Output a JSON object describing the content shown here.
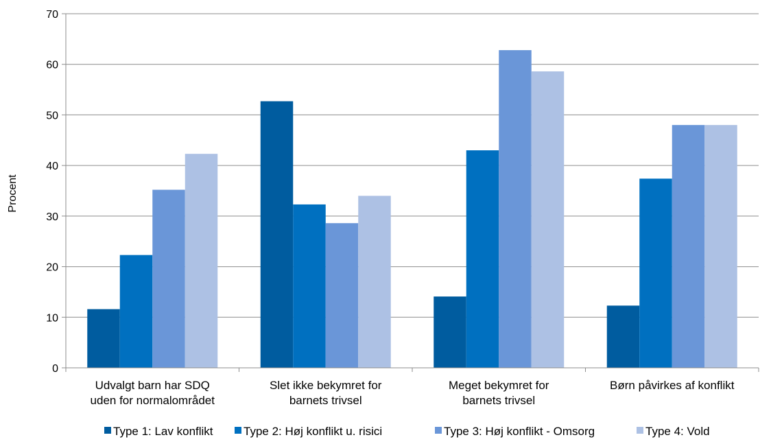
{
  "chart_data": {
    "type": "bar",
    "title": "",
    "xlabel": "",
    "ylabel": "Procent",
    "ylim": [
      0,
      70
    ],
    "yticks": [
      0,
      10,
      20,
      30,
      40,
      50,
      60,
      70
    ],
    "grid": true,
    "legend_position": "bottom",
    "categories": [
      [
        "Udvalgt barn har SDQ",
        "uden for normalområdet"
      ],
      [
        "Slet ikke bekymret for",
        "barnets trivsel"
      ],
      [
        "Meget bekymret for",
        "barnets trivsel"
      ],
      [
        "Børn påvirkes af konflikt"
      ]
    ],
    "series": [
      {
        "name": "Type 1: Lav konflikt",
        "color": "#005C9F",
        "values": [
          11.6,
          52.7,
          14.1,
          12.3
        ]
      },
      {
        "name": "Type 2: Høj konflikt u. risici",
        "color": "#0070C0",
        "values": [
          22.3,
          32.3,
          43.0,
          37.4
        ]
      },
      {
        "name": "Type 3: Høj konflikt - Omsorg",
        "color": "#6A96D8",
        "values": [
          35.2,
          28.6,
          62.8,
          48.0
        ]
      },
      {
        "name": "Type 4: Vold",
        "color": "#ADC1E4",
        "values": [
          42.3,
          34.0,
          58.6,
          48.0
        ]
      }
    ]
  }
}
